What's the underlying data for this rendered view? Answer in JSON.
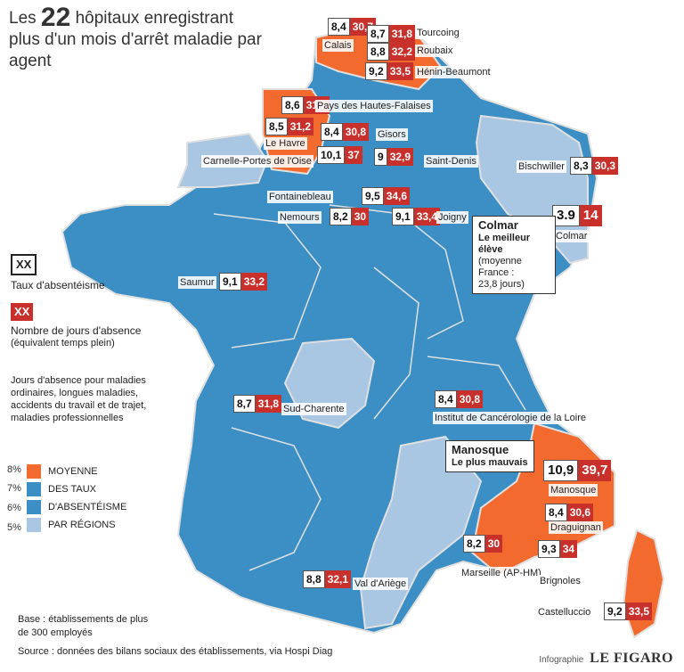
{
  "title": {
    "prefix": "Les",
    "number": "22",
    "rest": "hôpitaux enregistrant plus d'un mois d'arrêt maladie par agent"
  },
  "colors": {
    "high": "#f26a2e",
    "mid": "#3b8fc4",
    "low": "#a9c6e3",
    "marker_red": "#c8302c",
    "line": "#e0e0e0"
  },
  "legend": {
    "rate_box": "XX",
    "rate_label": "Taux d'absentéisme",
    "days_box": "XX",
    "days_label": "Nombre de jours d'absence",
    "days_sub": "(équivalent temps plein)",
    "days_note": "Jours d'absence pour maladies ordinaires, longues maladies, accidents du travail et de trajet, maladies professionnelles"
  },
  "scale": {
    "labels": [
      "8%",
      "7%",
      "6%",
      "5%"
    ],
    "items": [
      "MOYENNE",
      "DES TAUX",
      "D'ABSENTÉISME",
      "PAR RÉGIONS"
    ]
  },
  "hospitals": [
    {
      "name": "Calais",
      "rate": "8,4",
      "days": "30,7"
    },
    {
      "name": "Tourcoing",
      "rate": "8,7",
      "days": "31,8"
    },
    {
      "name": "Roubaix",
      "rate": "8,8",
      "days": "32,2"
    },
    {
      "name": "Hénin-Beaumont",
      "rate": "9,2",
      "days": "33,5"
    },
    {
      "name": "Pays des Hautes-Falaises",
      "rate": "8,6",
      "days": "31,3"
    },
    {
      "name": "Le Havre",
      "rate": "8,5",
      "days": "31,2"
    },
    {
      "name": "Gisors",
      "rate": "8,4",
      "days": "30,8"
    },
    {
      "name": "Carnelle-Portes de l'Oise",
      "rate": "10,1",
      "days": "37"
    },
    {
      "name": "Saint-Denis",
      "rate": "9",
      "days": "32,9"
    },
    {
      "name": "Bischwiller",
      "rate": "8,3",
      "days": "30,3"
    },
    {
      "name": "Fontainebleau",
      "rate": "9,5",
      "days": "34,6"
    },
    {
      "name": "Nemours",
      "rate": "8,2",
      "days": "30"
    },
    {
      "name": "Joigny",
      "rate": "9,1",
      "days": "33,4"
    },
    {
      "name": "Colmar",
      "rate": "3.9",
      "days": "14"
    },
    {
      "name": "Saumur",
      "rate": "9,1",
      "days": "33,2"
    },
    {
      "name": "Sud-Charente",
      "rate": "8,7",
      "days": "31,8"
    },
    {
      "name": "Institut de Cancérologie de la Loire",
      "rate": "8,4",
      "days": "30,8"
    },
    {
      "name": "Manosque",
      "rate": "10,9",
      "days": "39,7"
    },
    {
      "name": "Draguignan",
      "rate": "8,4",
      "days": "30,6"
    },
    {
      "name": "Marseille (AP-HM)",
      "rate": "8,2",
      "days": "30"
    },
    {
      "name": "Brignoles",
      "rate": "9,3",
      "days": "34"
    },
    {
      "name": "Val d'Ariège",
      "rate": "8,8",
      "days": "32,1"
    },
    {
      "name": "Castelluccio",
      "rate": "9,2",
      "days": "33,5"
    }
  ],
  "callouts": {
    "colmar": {
      "title": "Colmar",
      "line1": "Le meilleur",
      "line2": "élève",
      "line3": "(moyenne",
      "line4": "France :",
      "line5": "23,8 jours)"
    },
    "manosque": {
      "title": "Manosque",
      "line1": "Le plus mauvais"
    }
  },
  "notes": {
    "base": "Base : établissements de plus de 300 employés",
    "source": "Source : données des bilans sociaux des établissements, via Hospi Diag",
    "credit_prefix": "Infographie",
    "credit_brand": "LE FIGARO"
  }
}
